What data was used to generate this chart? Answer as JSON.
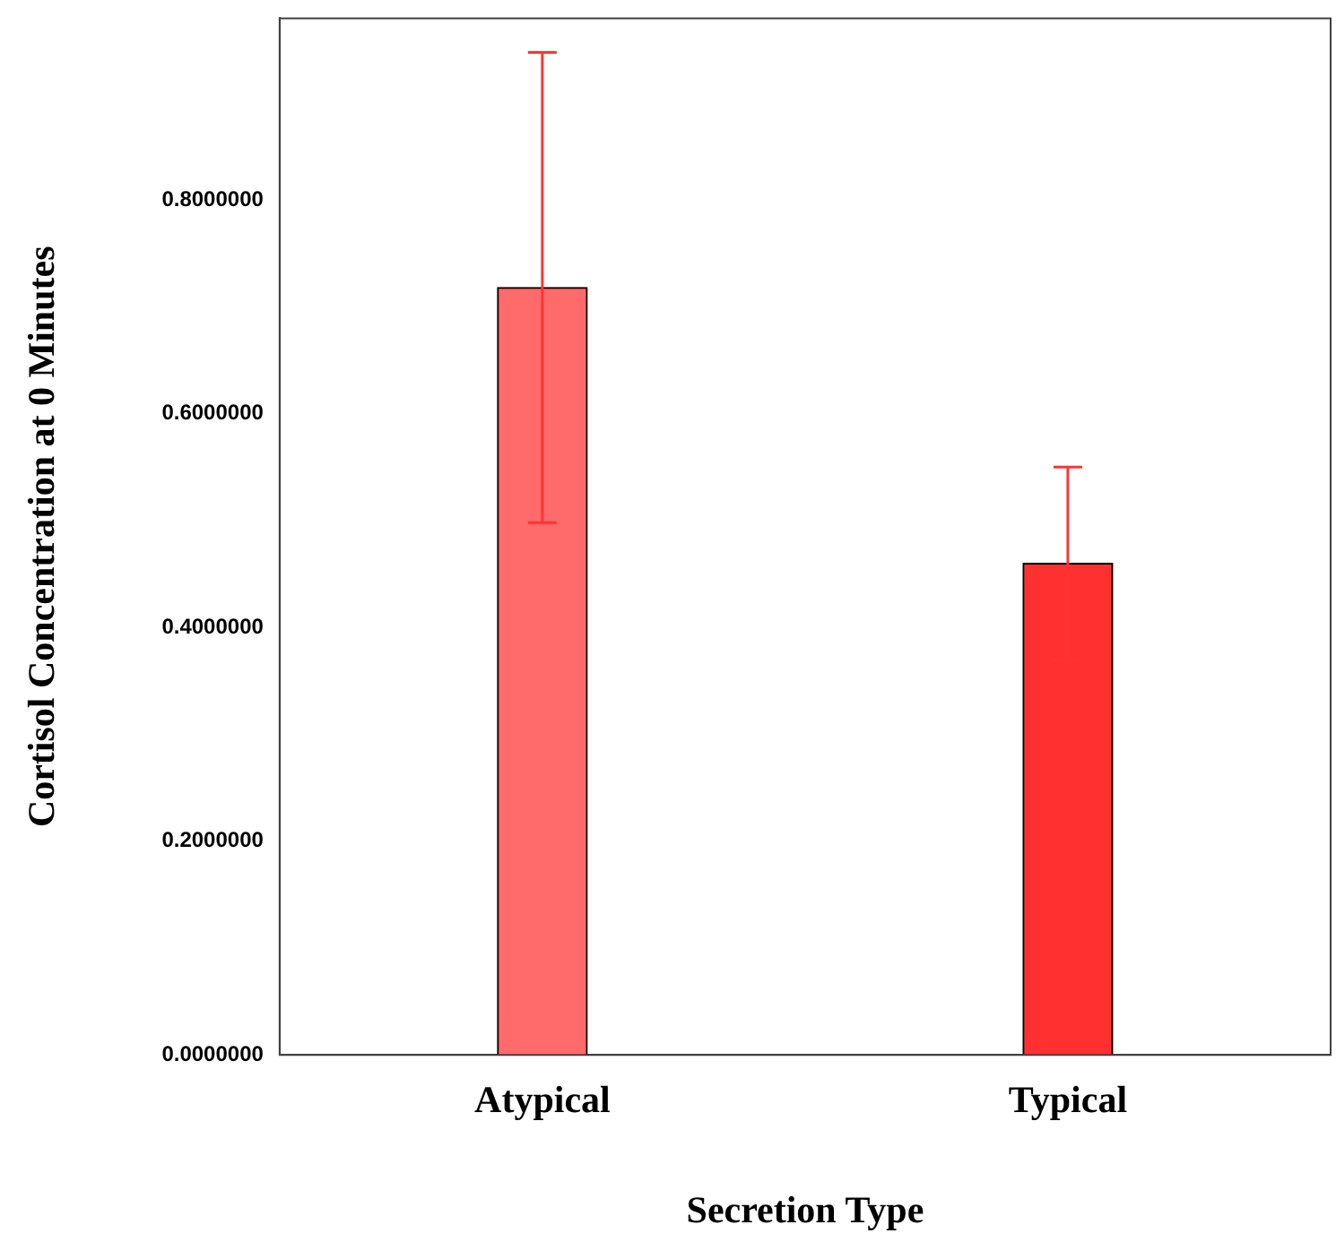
{
  "chart_data": {
    "type": "bar",
    "xlabel": "Secretion Type",
    "ylabel": "Cortisol Concentration at 0 Minutes",
    "categories": [
      "Atypical",
      "Typical"
    ],
    "values": [
      0.718,
      0.46
    ],
    "colors": [
      "#ff6a6a",
      "#ff3030"
    ],
    "errors": [
      0.22,
      0.09
    ],
    "ylim": [
      0,
      0.97
    ],
    "yticks": [
      {
        "value": 0,
        "label": "0.0000000"
      },
      {
        "value": 0.2,
        "label": "0.2000000"
      },
      {
        "value": 0.4,
        "label": "0.4000000"
      },
      {
        "value": 0.6,
        "label": "0.6000000"
      },
      {
        "value": 0.8,
        "label": "0.8000000"
      }
    ],
    "grid": false,
    "legend": false
  }
}
